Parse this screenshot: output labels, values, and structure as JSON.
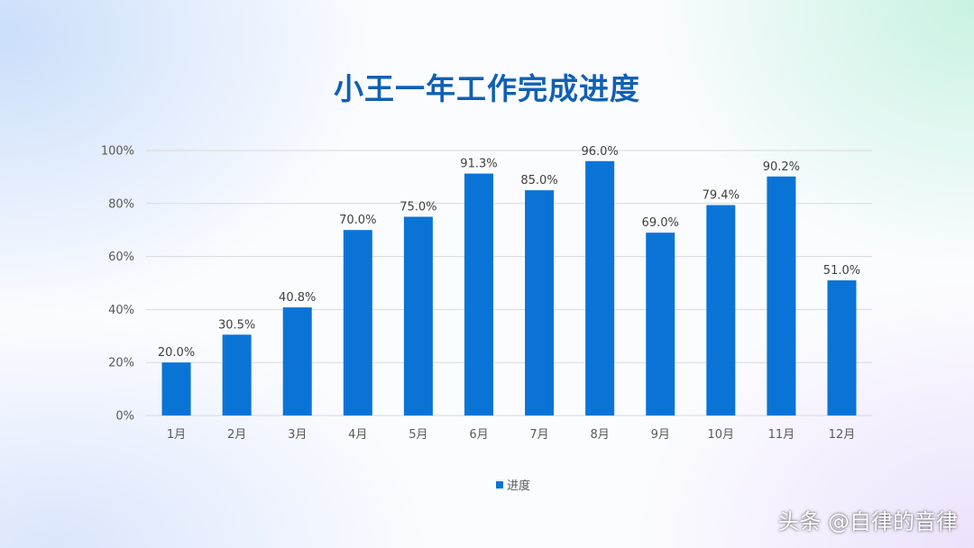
{
  "chart_data": {
    "type": "bar",
    "title": "小王一年工作完成进度",
    "categories": [
      "1月",
      "2月",
      "3月",
      "4月",
      "5月",
      "6月",
      "7月",
      "8月",
      "9月",
      "10月",
      "11月",
      "12月"
    ],
    "series": [
      {
        "name": "进度",
        "values": [
          20.0,
          30.5,
          40.8,
          70.0,
          75.0,
          91.3,
          85.0,
          96.0,
          69.0,
          79.4,
          90.2,
          51.0
        ]
      }
    ],
    "data_labels": [
      "20.0%",
      "30.5%",
      "40.8%",
      "70.0%",
      "75.0%",
      "91.3%",
      "85.0%",
      "96.0%",
      "69.0%",
      "79.4%",
      "90.2%",
      "51.0%"
    ],
    "y_ticks": [
      0,
      20,
      40,
      60,
      80,
      100
    ],
    "y_tick_labels": [
      "0%",
      "20%",
      "40%",
      "60%",
      "80%",
      "100%"
    ],
    "ylim": [
      0,
      100
    ],
    "xlabel": "",
    "ylabel": "",
    "grid": true,
    "legend": "bottom-center",
    "colors": {
      "bar": "#0a74d6",
      "grid": "#d9d9d9",
      "axis_text": "#595959",
      "title": "#1060b4"
    }
  },
  "watermark": "头条 @自律的音律"
}
